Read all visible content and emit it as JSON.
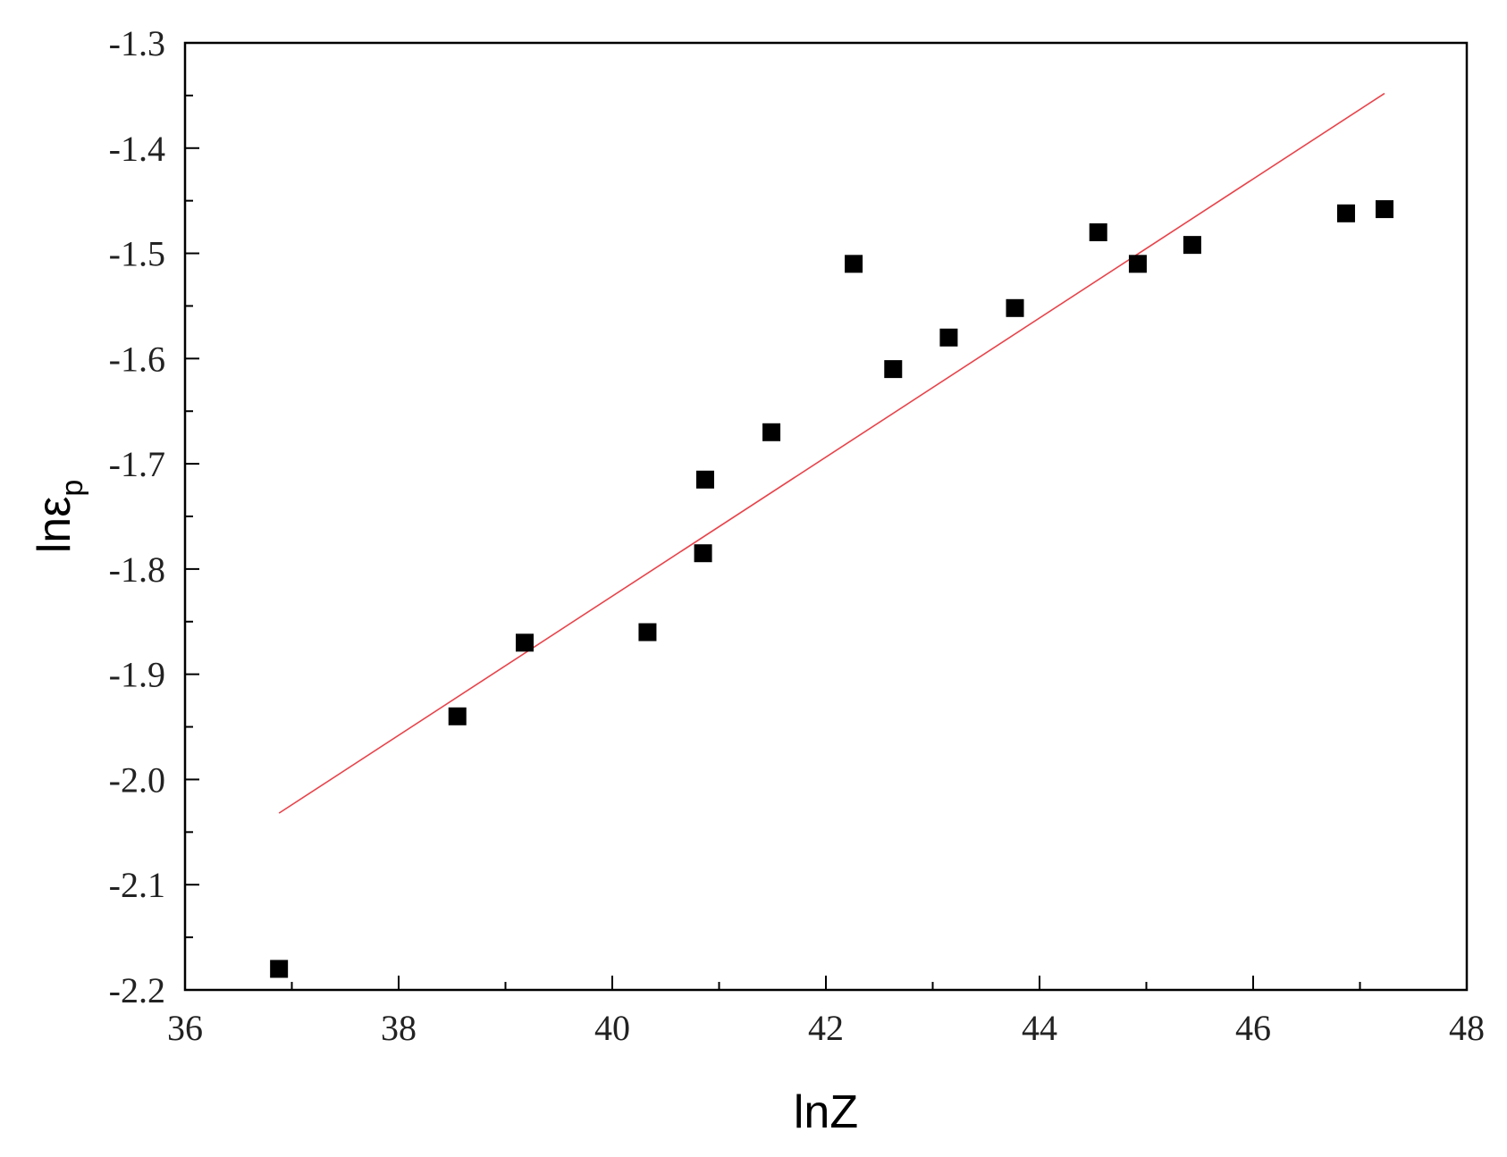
{
  "chart_data": {
    "type": "scatter",
    "xlabel": "lnZ",
    "ylabel": {
      "main": "lnε",
      "subscript": "p"
    },
    "xlim": [
      36,
      48
    ],
    "ylim": [
      -2.2,
      -1.3
    ],
    "x_ticks": [
      "36",
      "38",
      "40",
      "42",
      "44",
      "46",
      "48"
    ],
    "y_ticks": [
      "-1.3",
      "-1.4",
      "-1.5",
      "-1.6",
      "-1.7",
      "-1.8",
      "-1.9",
      "-2.0",
      "-2.1",
      "-2.2"
    ],
    "grid": false,
    "series": [
      {
        "marker": "square",
        "color": "#000000",
        "points": [
          {
            "x": 36.88,
            "y": -2.18
          },
          {
            "x": 38.55,
            "y": -1.94
          },
          {
            "x": 39.18,
            "y": -1.87
          },
          {
            "x": 40.33,
            "y": -1.86
          },
          {
            "x": 40.85,
            "y": -1.785
          },
          {
            "x": 40.87,
            "y": -1.715
          },
          {
            "x": 41.49,
            "y": -1.67
          },
          {
            "x": 42.26,
            "y": -1.51
          },
          {
            "x": 42.63,
            "y": -1.61
          },
          {
            "x": 43.15,
            "y": -1.58
          },
          {
            "x": 43.77,
            "y": -1.552
          },
          {
            "x": 44.55,
            "y": -1.48
          },
          {
            "x": 44.92,
            "y": -1.51
          },
          {
            "x": 45.43,
            "y": -1.492
          },
          {
            "x": 46.87,
            "y": -1.462
          },
          {
            "x": 47.23,
            "y": -1.458
          }
        ]
      }
    ],
    "fit_line": {
      "color": "#e8434a",
      "points": [
        {
          "x": 36.88,
          "y": -2.032
        },
        {
          "x": 47.23,
          "y": -1.348
        }
      ]
    }
  }
}
